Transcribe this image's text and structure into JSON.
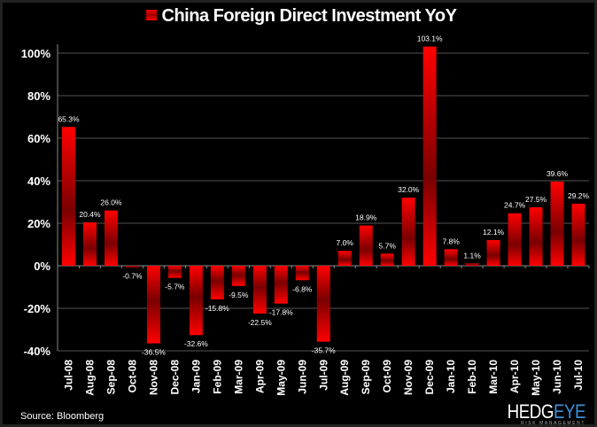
{
  "chart_data": {
    "type": "bar",
    "title": "China Foreign Direct Investment YoY",
    "legend": "China Foreign Direct Investment YoY",
    "legend_placement": "top-center",
    "categories": [
      "Jul-08",
      "Aug-08",
      "Sep-08",
      "Oct-08",
      "Nov-08",
      "Dec-08",
      "Jan-09",
      "Feb-09",
      "Mar-09",
      "Apr-09",
      "May-09",
      "Jun-09",
      "Jul-09",
      "Aug-09",
      "Sep-09",
      "Oct-09",
      "Nov-09",
      "Dec-09",
      "Jan-10",
      "Feb-10",
      "Mar-10",
      "Apr-10",
      "May-10",
      "Jun-10",
      "Jul-10"
    ],
    "values": [
      65.3,
      20.4,
      26.0,
      -0.7,
      -36.5,
      -5.7,
      -32.6,
      -15.8,
      -9.5,
      -22.5,
      -17.8,
      -6.8,
      -35.7,
      7.0,
      18.9,
      5.7,
      32.0,
      103.1,
      7.8,
      1.1,
      12.1,
      24.7,
      27.5,
      39.6,
      29.2
    ],
    "data_labels": [
      "65.3%",
      "20.4%",
      "26.0%",
      "-0.7%",
      "-36.5%",
      "-5.7%",
      "-32.6%",
      "-15.8%",
      "-9.5%",
      "-22.5%",
      "-17.8%",
      "-6.8%",
      "-35.7%",
      "7.0%",
      "18.9%",
      "5.7%",
      "32.0%",
      "103.1%",
      "7.8%",
      "1.1%",
      "12.1%",
      "24.7%",
      "27.5%",
      "39.6%",
      "29.2%"
    ],
    "yticks": [
      "-40%",
      "-20%",
      "0%",
      "20%",
      "40%",
      "60%",
      "80%",
      "100%"
    ],
    "ytick_values": [
      -40,
      -20,
      0,
      20,
      40,
      60,
      80,
      100
    ],
    "ylim": [
      -40,
      100
    ],
    "grid": true,
    "xlabel": "",
    "ylabel": "",
    "colors": {
      "bar": "#ff0000",
      "bar_dark": "#7a0000",
      "background": "#000000",
      "grid": "#555555",
      "text": "#ffffff"
    }
  },
  "source": "Source: Bloomberg",
  "logo": {
    "part1": "HEDG",
    "part2": "EYE",
    "sub": "RISK MANAGEMENT",
    "accent": "#3a8fd8"
  }
}
